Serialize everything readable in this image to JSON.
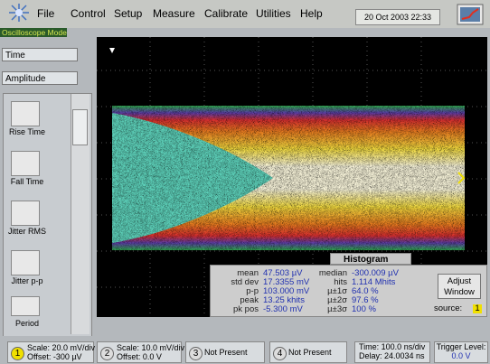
{
  "menu": {
    "items": [
      "File",
      "Control",
      "Setup",
      "Measure",
      "Calibrate",
      "Utilities",
      "Help"
    ],
    "datetime": "20 Oct 2003  22:33"
  },
  "mode_label": "Oscilloscope Mode",
  "sidebar": {
    "dropdowns": [
      "Time",
      "Amplitude"
    ],
    "tools": [
      "Rise Time",
      "Fall Time",
      "Jitter RMS",
      "Jitter p-p",
      "Period"
    ]
  },
  "histogram": {
    "title": "Histogram",
    "left_stats": [
      {
        "label": "mean",
        "value": "47.503 µV"
      },
      {
        "label": "std dev",
        "value": "17.3355 mV"
      },
      {
        "label": "p-p",
        "value": "103.000 mV"
      },
      {
        "label": "peak",
        "value": "13.25 khits"
      },
      {
        "label": "pk pos",
        "value": "-5.300 mV"
      }
    ],
    "right_stats": [
      {
        "label": "median",
        "value": "-300.009 µV"
      },
      {
        "label": "hits",
        "value": "1.114 Mhits"
      },
      {
        "label": "µ±1σ",
        "value": "64.0 %"
      },
      {
        "label": "µ±2σ",
        "value": "97.6 %"
      },
      {
        "label": "µ±3σ",
        "value": "100 %"
      }
    ],
    "button": "Adjust Window",
    "source_label": "source:",
    "source_value": "1"
  },
  "status": {
    "channels": [
      {
        "number": "1",
        "scale": "Scale: 20.0 mV/div",
        "offset": "Offset: -300 µV"
      },
      {
        "number": "2",
        "scale": "Scale: 10.0 mV/div",
        "offset": "Offset: 0.0 V"
      },
      {
        "number": "3",
        "text": "Not Present"
      },
      {
        "number": "4",
        "text": "Not Present"
      }
    ],
    "time": "Time: 100.0 ns/div",
    "delay": "Delay: 24.0034 ns",
    "trigger_label": "Trigger Level:",
    "trigger_value": "0.0 V"
  }
}
